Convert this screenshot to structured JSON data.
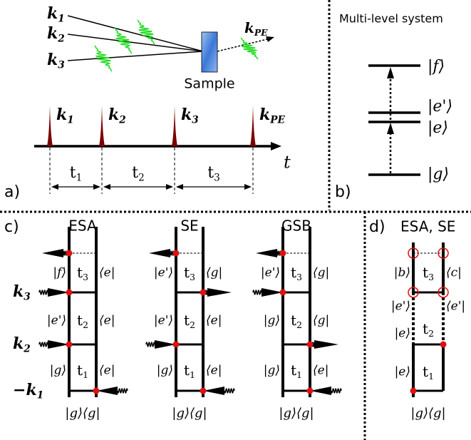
{
  "panel_a": {
    "label": "a)",
    "beams": [
      {
        "k": "k",
        "sub": "1"
      },
      {
        "k": "k",
        "sub": "2"
      },
      {
        "k": "k",
        "sub": "3"
      },
      {
        "k": "k",
        "sub": "PE"
      }
    ],
    "sample": "Sample",
    "pulses": [
      {
        "k": "k",
        "sub": "1"
      },
      {
        "k": "k",
        "sub": "2"
      },
      {
        "k": "k",
        "sub": "3"
      },
      {
        "k": "k",
        "sub": "PE"
      }
    ],
    "time_axis": "t",
    "intervals": [
      {
        "t": "t",
        "sub": "1"
      },
      {
        "t": "t",
        "sub": "2"
      },
      {
        "t": "t",
        "sub": "3"
      }
    ]
  },
  "panel_b": {
    "label": "b)",
    "title": "Multi-level system",
    "levels": [
      "|f⟩",
      "|e'⟩",
      "|e⟩",
      "|g⟩"
    ]
  },
  "panel_c": {
    "label": "c)",
    "pulse_labels": [
      {
        "sign": "",
        "k": "k",
        "sub": "3"
      },
      {
        "sign": "",
        "k": "k",
        "sub": "2"
      },
      {
        "sign": "−",
        "k": "k",
        "sub": "1"
      }
    ],
    "diagrams": [
      {
        "title": "ESA",
        "rows": [
          {
            "ket": "|f⟩",
            "t": "t",
            "sub": "3",
            "bra": "⟨e|"
          },
          {
            "ket": "|e'⟩",
            "t": "t",
            "sub": "2",
            "bra": "⟨e|"
          },
          {
            "ket": "|g⟩",
            "t": "t",
            "sub": "1",
            "bra": "⟨e|"
          }
        ],
        "bottom": "|g⟩⟨g|"
      },
      {
        "title": "SE",
        "rows": [
          {
            "ket": "|e'⟩",
            "t": "t",
            "sub": "3",
            "bra": "⟨g|"
          },
          {
            "ket": "|e'⟩",
            "t": "t",
            "sub": "2",
            "bra": "⟨e|"
          },
          {
            "ket": "|g⟩",
            "t": "t",
            "sub": "1",
            "bra": "⟨e|"
          }
        ],
        "bottom": "|g⟩⟨g|"
      },
      {
        "title": "GSB",
        "rows": [
          {
            "ket": "|e'⟩",
            "t": "t",
            "sub": "3",
            "bra": "⟨g|"
          },
          {
            "ket": "|g⟩",
            "t": "t",
            "sub": "2",
            "bra": "⟨g|"
          },
          {
            "ket": "|g⟩",
            "t": "t",
            "sub": "1",
            "bra": "⟨e|"
          }
        ],
        "bottom": "|g⟩⟨g|"
      }
    ]
  },
  "panel_d": {
    "label": "d)",
    "title": "ESA, SE",
    "rows": [
      {
        "ket": "|b⟩",
        "t": "t",
        "sub": "3",
        "bra": "⟨c|"
      },
      {
        "ket": "|e'⟩",
        "bra": "⟨e'|"
      },
      {
        "ket": "|e⟩",
        "t": "t",
        "sub": "2"
      },
      {
        "ket": "|e⟩",
        "t": "t",
        "sub": "1"
      }
    ],
    "bottom": "|g⟩⟨g|"
  }
}
